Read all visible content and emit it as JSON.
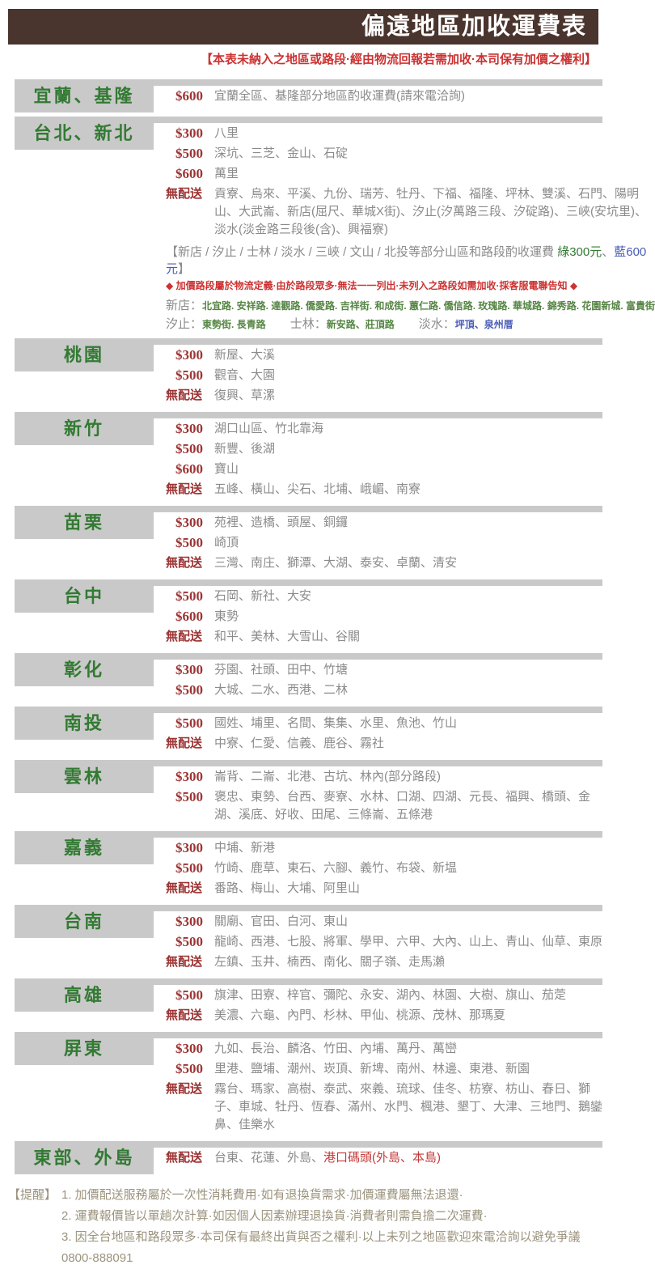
{
  "header": {
    "title": "偏遠地區加收運費表",
    "disclaimer": "【本表未納入之地區或路段·經由物流回報若需加收·本司保有加價之權利】"
  },
  "colors": {
    "header_bg": "#4a342e",
    "accent_red": "#cc3232",
    "price_red": "#9c3434",
    "region_green": "#337a33",
    "road_green": "#558544",
    "blue": "#4a5db5",
    "box_gray": "#c9c9c9",
    "text_gray": "#8b8b8b",
    "footer_olive": "#9b937e"
  },
  "sections": [
    {
      "region": "宜蘭、基隆",
      "rows": [
        {
          "label": "$600",
          "text": "宜蘭全區、基隆部分地區酌收運費(請來電洽詢)"
        }
      ]
    },
    {
      "region": "台北、新北",
      "rows": [
        {
          "label": "$300",
          "text": "八里"
        },
        {
          "label": "$500",
          "text": "深坑、三芝、金山、石碇"
        },
        {
          "label": "$600",
          "text": "萬里"
        },
        {
          "label": "無配送",
          "text": "貢寮、烏來、平溪、九份、瑞芳、牡丹、下福、福隆、坪林、雙溪、石門、陽明山、大武崙、新店(屈尺、華城X街)、汐止(汐萬路三段、汐碇路)、三峽(安坑里)、淡水(淡金路三段後(含)、興福寮)"
        }
      ],
      "special": {
        "heading_parts": [
          {
            "t": "【新店 / 汐止 / 士林 / 淡水 / 三峽 / 文山 / 北投等部分山區和路段酌收運費 ",
            "c": "gray"
          },
          {
            "t": "綠300元",
            "c": "green"
          },
          {
            "t": "、",
            "c": "gray"
          },
          {
            "t": "藍600元",
            "c": "blue"
          },
          {
            "t": "】",
            "c": "gray"
          }
        ],
        "warning": "◆ 加價路段屬於物流定義·由於路段眾多·無法一一列出·未列入之路段如需加收·採客服電聯告知 ◆",
        "road_lines": [
          [
            {
              "label": "新店：",
              "roads": "北宜路. 安祥路. 達觀路. 僑愛路. 吉祥街. 和成街. 蕙仁路. 僑信路. 玫瑰路. 華城路. 錦秀路. 花園新城. 富貴街",
              "color": "green"
            }
          ],
          [
            {
              "label": "汐止：",
              "roads": "東勢街. 長青路",
              "color": "green"
            },
            {
              "label": "士林：",
              "roads": "新安路、莊頂路",
              "color": "green"
            },
            {
              "label": "淡水：",
              "roads": "坪頂、泉州厝",
              "color": "blue"
            }
          ]
        ]
      }
    },
    {
      "region": "桃園",
      "rows": [
        {
          "label": "$300",
          "text": "新屋、大溪"
        },
        {
          "label": "$500",
          "text": "觀音、大園"
        },
        {
          "label": "無配送",
          "text": "復興、草漯"
        }
      ]
    },
    {
      "region": "新竹",
      "rows": [
        {
          "label": "$300",
          "text": "湖口山區、竹北靠海"
        },
        {
          "label": "$500",
          "text": "新豐、後湖"
        },
        {
          "label": "$600",
          "text": "寶山"
        },
        {
          "label": "無配送",
          "text": "五峰、橫山、尖石、北埔、峨嵋、南寮"
        }
      ]
    },
    {
      "region": "苗栗",
      "rows": [
        {
          "label": "$300",
          "text": "苑裡、造橋、頭屋、銅鑼"
        },
        {
          "label": "$500",
          "text": "崎頂"
        },
        {
          "label": "無配送",
          "text": "三灣、南庄、獅潭、大湖、泰安、卓蘭、清安"
        }
      ]
    },
    {
      "region": "台中",
      "rows": [
        {
          "label": "$500",
          "text": "石岡、新社、大安"
        },
        {
          "label": "$600",
          "text": "東勢"
        },
        {
          "label": "無配送",
          "text": "和平、美林、大雪山、谷關"
        }
      ]
    },
    {
      "region": "彰化",
      "rows": [
        {
          "label": "$300",
          "text": "芬園、社頭、田中、竹塘"
        },
        {
          "label": "$500",
          "text": "大城、二水、西港、二林"
        }
      ]
    },
    {
      "region": "南投",
      "rows": [
        {
          "label": "$500",
          "text": "國姓、埔里、名間、集集、水里、魚池、竹山"
        },
        {
          "label": "無配送",
          "text": "中寮、仁愛、信義、鹿谷、霧社"
        }
      ]
    },
    {
      "region": "雲林",
      "rows": [
        {
          "label": "$300",
          "text": "崙背、二崙、北港、古坑、林內(部分路段)"
        },
        {
          "label": "$500",
          "text": "褒忠、東勢、台西、麥寮、水林、口湖、四湖、元長、福興、橋頭、金湖、溪底、好收、田尾、三條崙、五條港"
        }
      ]
    },
    {
      "region": "嘉義",
      "rows": [
        {
          "label": "$300",
          "text": "中埔、新港"
        },
        {
          "label": "$500",
          "text": "竹崎、鹿草、東石、六腳、義竹、布袋、新塭"
        },
        {
          "label": "無配送",
          "text": "番路、梅山、大埔、阿里山"
        }
      ]
    },
    {
      "region": "台南",
      "rows": [
        {
          "label": "$300",
          "text": "關廟、官田、白河、東山"
        },
        {
          "label": "$500",
          "text": "龍崎、西港、七股、將軍、學甲、六甲、大內、山上、青山、仙草、東原"
        },
        {
          "label": "無配送",
          "text": "左鎮、玉井、楠西、南化、關子嶺、走馬瀨"
        }
      ]
    },
    {
      "region": "高雄",
      "rows": [
        {
          "label": "$500",
          "text": "旗津、田寮、梓官、彌陀、永安、湖內、林園、大樹、旗山、茄萣"
        },
        {
          "label": "無配送",
          "text": "美濃、六龜、內門、杉林、甲仙、桃源、茂林、那瑪夏"
        }
      ]
    },
    {
      "region": "屏東",
      "rows": [
        {
          "label": "$300",
          "text": "九如、長治、麟洛、竹田、內埔、萬丹、萬巒"
        },
        {
          "label": "$500",
          "text": "里港、鹽埔、潮州、崁頂、新埤、南州、林邊、東港、新園"
        },
        {
          "label": "無配送",
          "text": "霧台、瑪家、高樹、泰武、來義、琉球、佳冬、枋寮、枋山、春日、獅子、車城、牡丹、恆春、滿州、水門、楓港、墾丁、大津、三地門、鵝鑾鼻、佳樂水"
        }
      ]
    },
    {
      "region": "東部、外島",
      "rows": [
        {
          "label": "無配送",
          "parts": [
            {
              "t": "台東、花蓮、外島、",
              "c": "gray"
            },
            {
              "t": "港口碼頭(外島、本島)",
              "c": "red"
            }
          ]
        }
      ]
    }
  ],
  "footer": {
    "label": "【提醒】",
    "notes": [
      "1. 加價配送服務屬於一次性消耗費用·如有退換貨需求·加價運費屬無法退還·",
      "2. 運費報價皆以單趟次計算·如因個人因素辦理退換貨·消費者則需負擔二次運費·",
      "3. 因全台地區和路段眾多·本司保有最終出貨與否之權利·以上未列之地區歡迎來電洽詢以避免爭議0800-888091"
    ]
  }
}
